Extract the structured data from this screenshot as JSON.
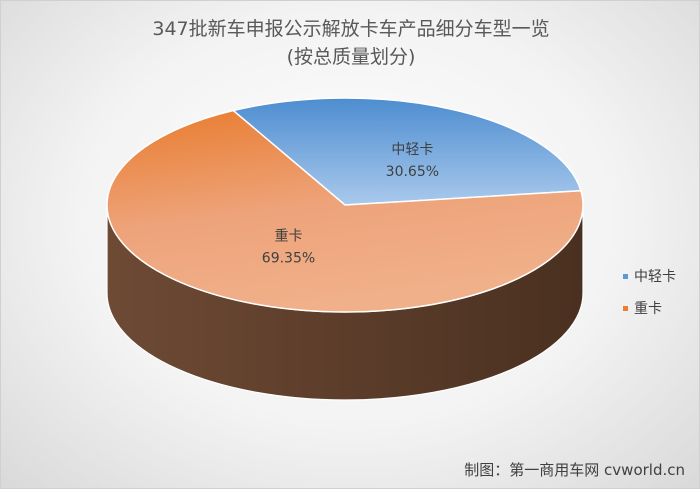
{
  "chart_data": {
    "type": "pie",
    "title": "347批新车申报公示解放卡车产品细分车型一览",
    "subtitle": "(按总质量划分)",
    "categories": [
      "中轻卡",
      "重卡"
    ],
    "values": [
      30.65,
      69.35
    ],
    "value_labels": [
      "30.65%",
      "69.35%"
    ],
    "colors": [
      "#5b9bd5",
      "#ed7d31"
    ],
    "legend_position": "right",
    "style": "3d"
  },
  "footer": "制图：第一商用车网 cvworld.cn"
}
